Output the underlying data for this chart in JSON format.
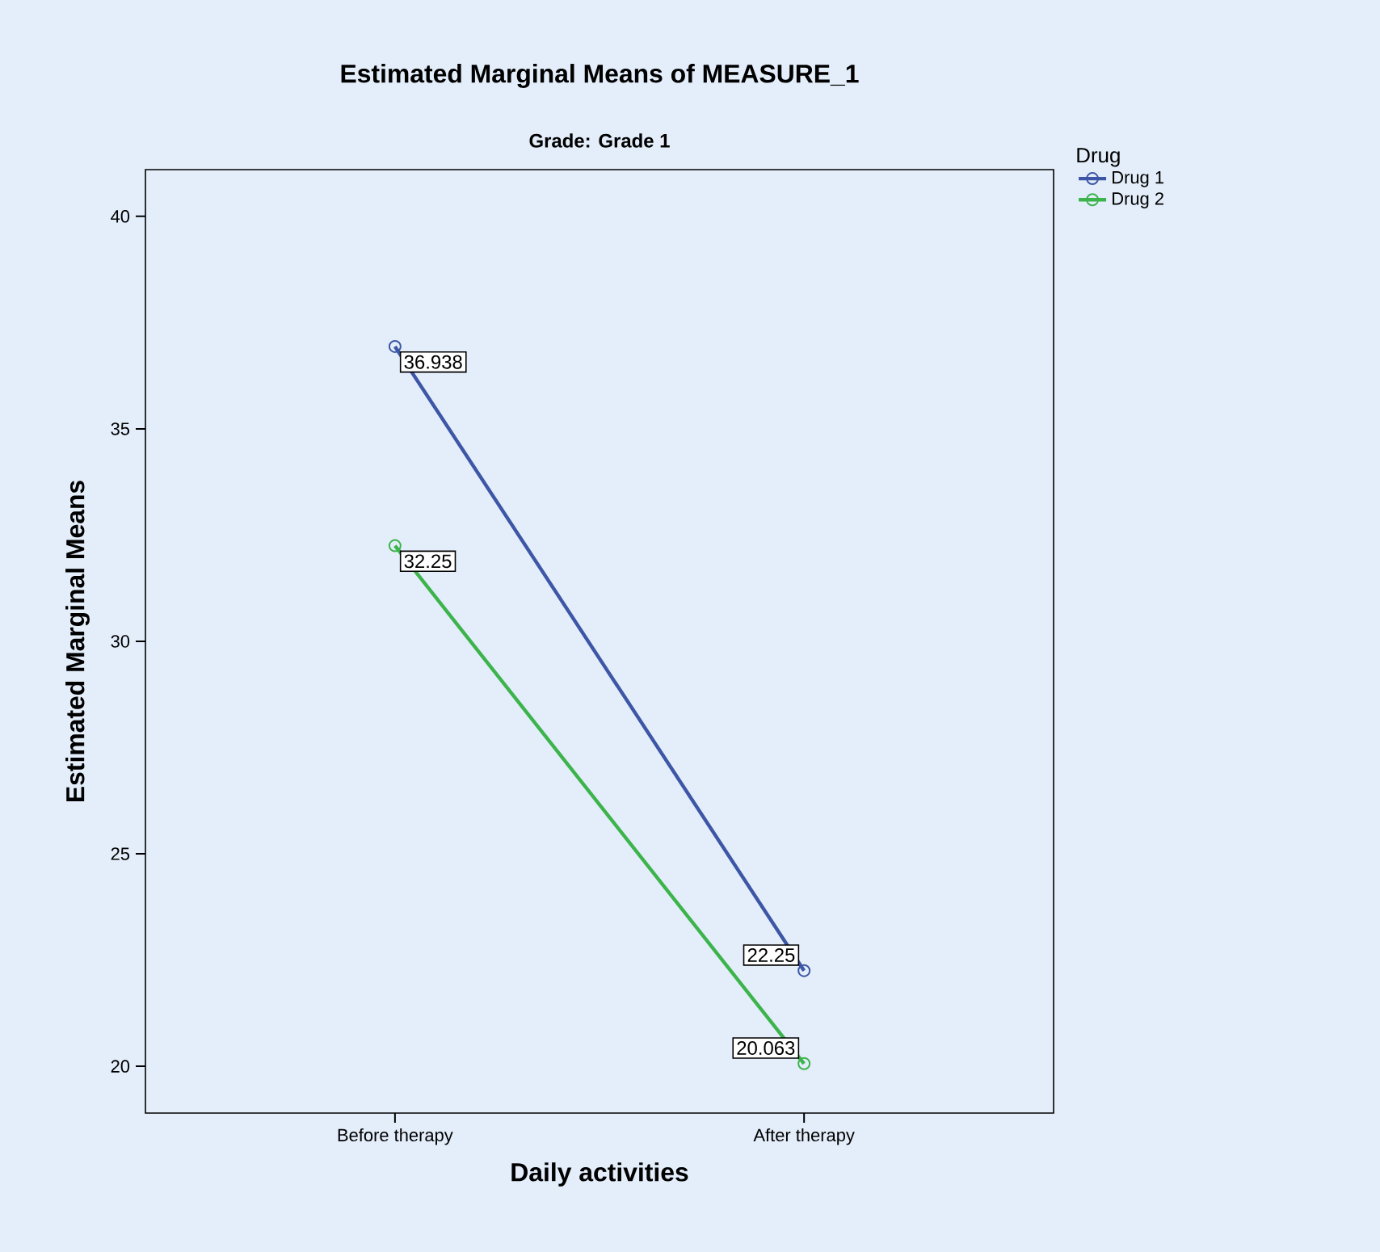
{
  "chart_data": {
    "type": "line",
    "title": "Estimated Marginal Means of MEASURE_1",
    "subtitle": "Grade: Grade 1",
    "xlabel": "Daily activities",
    "ylabel": "Estimated Marginal Means",
    "legend_title": "Drug",
    "categories": [
      "Before therapy",
      "After therapy"
    ],
    "series": [
      {
        "name": "Drug 1",
        "color": "#3d56a6",
        "values": [
          36.938,
          22.25
        ]
      },
      {
        "name": "Drug 2",
        "color": "#3cb44b",
        "values": [
          32.25,
          20.063
        ]
      }
    ],
    "ylim": [
      18.9,
      41.1
    ],
    "yticks": [
      20,
      25,
      30,
      35,
      40
    ],
    "data_labels": true,
    "legend": "top right",
    "marker": "circle",
    "line_style": "solid",
    "grid": false
  }
}
